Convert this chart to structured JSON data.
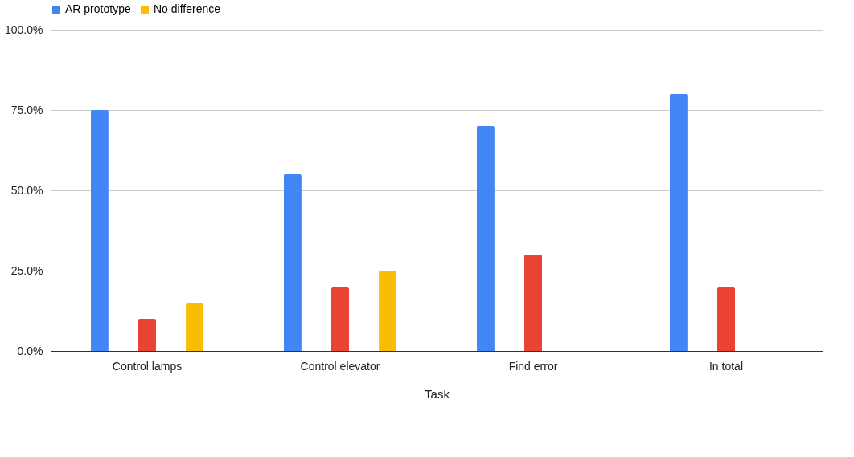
{
  "chart_data": {
    "type": "bar",
    "xlabel": "Task",
    "categories": [
      "Control lamps",
      "Control elevator",
      "Find error",
      "In total"
    ],
    "series": [
      {
        "name": "AR prototype",
        "color": "#4285f4",
        "values": [
          75,
          55,
          70,
          80
        ]
      },
      {
        "color": "#ea4335",
        "values": [
          10,
          20,
          30,
          20
        ]
      },
      {
        "name": "No difference",
        "color": "#fbbc04",
        "values": [
          15,
          25,
          null,
          null
        ]
      }
    ],
    "ylim": [
      0,
      100
    ],
    "yticks": [
      {
        "value": 0,
        "label": "0.0%"
      },
      {
        "value": 25,
        "label": "25.0%"
      },
      {
        "value": 50,
        "label": "50.0%"
      },
      {
        "value": 75,
        "label": "75.0%"
      },
      {
        "value": 100,
        "label": "100.0%"
      }
    ],
    "grid": "y",
    "legend": "top"
  }
}
